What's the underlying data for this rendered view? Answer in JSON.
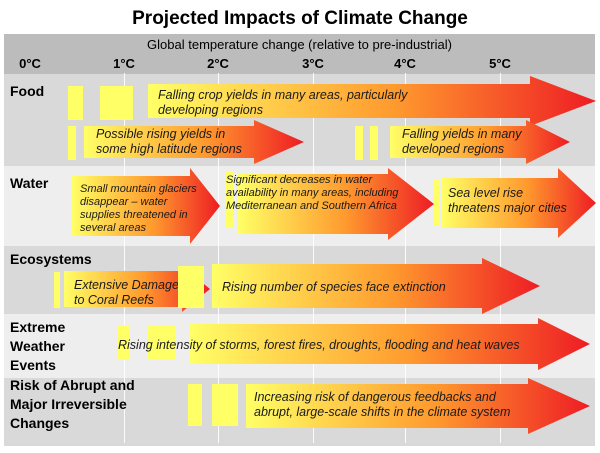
{
  "title": "Projected Impacts of Climate Change",
  "axis": {
    "label": "Global temperature change (relative to pre-industrial)",
    "ticks": [
      "0°C",
      "1°C",
      "2°C",
      "3°C",
      "4°C",
      "5°C"
    ]
  },
  "rows": {
    "food": "Food",
    "water": "Water",
    "ecosystems": "Ecosystems",
    "extreme": [
      "Extreme",
      "Weather",
      "Events"
    ],
    "abrupt": [
      "Risk of Abrupt and",
      "Major Irreversible",
      "Changes"
    ]
  },
  "arrows": {
    "food_falling_yields_many_areas": [
      "Falling crop yields in many areas, particularly",
      "developing regions"
    ],
    "food_rising_yields": [
      "Possible rising yields in",
      "some high latitude regions"
    ],
    "food_falling_yields_developed": [
      "Falling yields in many",
      "developed regions"
    ],
    "water_glaciers": [
      "Small mountain glaciers",
      "disappear – water",
      "supplies threatened in",
      "several areas"
    ],
    "water_availability": [
      "Significant decreases in water",
      "availability in many areas, including",
      "Mediterranean and Southern Africa"
    ],
    "water_sea_level": [
      "Sea level rise",
      "threatens major cities"
    ],
    "eco_coral": [
      "Extensive Damage",
      "to Coral Reefs"
    ],
    "eco_extinction": "Rising number of species face extinction",
    "extreme_storms": "Rising intensity of storms, forest fires, droughts, flooding and heat waves",
    "abrupt_feedbacks": [
      "Increasing risk of dangerous feedbacks and",
      "abrupt, large-scale shifts in the climate system"
    ]
  },
  "colors": {
    "arrow_start": "#ffff66",
    "arrow_mid": "#ff9a2e",
    "arrow_end": "#ee1c24",
    "bar": "#ffff66",
    "row_gray": "#d9d9d9",
    "row_light": "#eeeeee",
    "header_gray": "#bcbcbc"
  }
}
